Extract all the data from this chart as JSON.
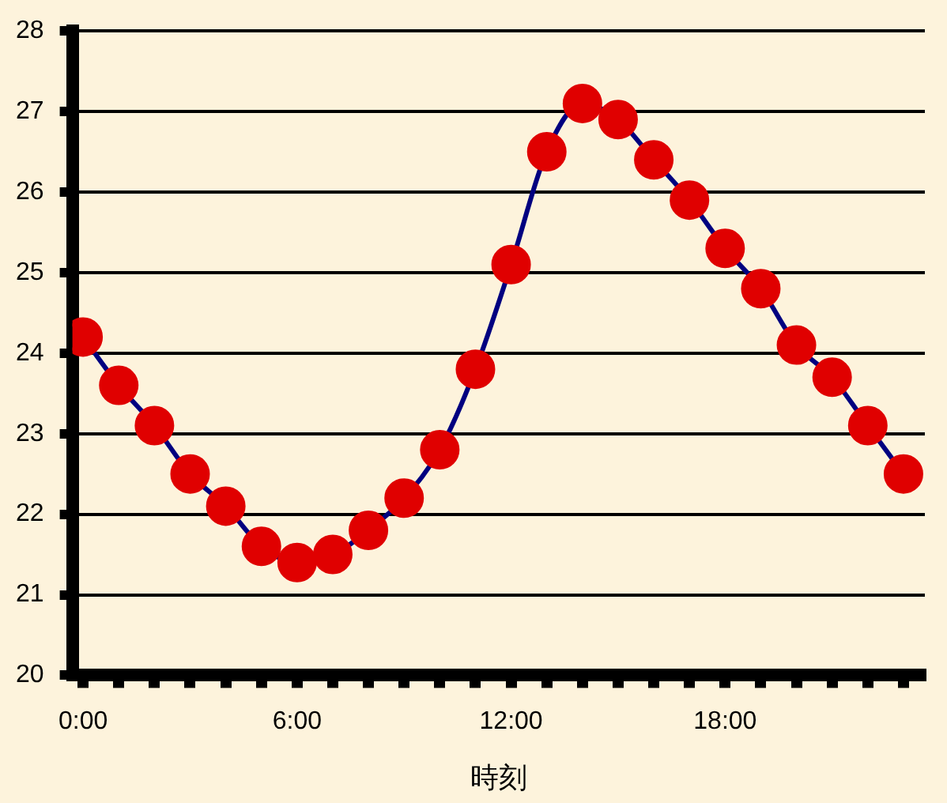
{
  "chart_data": {
    "type": "line",
    "xlabel": "時刻",
    "x": [
      0,
      1,
      2,
      3,
      4,
      5,
      6,
      7,
      8,
      9,
      10,
      11,
      12,
      13,
      14,
      15,
      16,
      17,
      18,
      19,
      20,
      21,
      22,
      23
    ],
    "series": [
      {
        "color": "#000080",
        "values": [
          24.2,
          23.6,
          23.1,
          22.5,
          22.1,
          21.6,
          21.4,
          21.5,
          21.8,
          22.2,
          22.8,
          23.8,
          25.1,
          26.5,
          27.1,
          26.9,
          26.4,
          25.9,
          25.3,
          24.8,
          24.1,
          23.7,
          23.1,
          22.5
        ]
      }
    ],
    "marker": "circle",
    "line_style": "solid",
    "xlim": [
      -0.3,
      23.6
    ],
    "xticks": [
      {
        "value": 0,
        "label": "0:00"
      },
      {
        "value": 1,
        "label": null
      },
      {
        "value": 2,
        "label": null
      },
      {
        "value": 3,
        "label": null
      },
      {
        "value": 4,
        "label": null
      },
      {
        "value": 5,
        "label": null
      },
      {
        "value": 6,
        "label": "6:00"
      },
      {
        "value": 7,
        "label": null
      },
      {
        "value": 8,
        "label": null
      },
      {
        "value": 9,
        "label": null
      },
      {
        "value": 10,
        "label": null
      },
      {
        "value": 11,
        "label": null
      },
      {
        "value": 12,
        "label": "12:00"
      },
      {
        "value": 13,
        "label": null
      },
      {
        "value": 14,
        "label": null
      },
      {
        "value": 15,
        "label": null
      },
      {
        "value": 16,
        "label": null
      },
      {
        "value": 17,
        "label": null
      },
      {
        "value": 18,
        "label": "18:00"
      },
      {
        "value": 19,
        "label": null
      },
      {
        "value": 20,
        "label": null
      },
      {
        "value": 21,
        "label": null
      },
      {
        "value": 22,
        "label": null
      },
      {
        "value": 23,
        "label": null
      }
    ],
    "ylim": [
      20,
      28
    ],
    "yticks": [
      20,
      21,
      22,
      23,
      24,
      25,
      26,
      27,
      28
    ],
    "grid": "y",
    "legend": false
  }
}
